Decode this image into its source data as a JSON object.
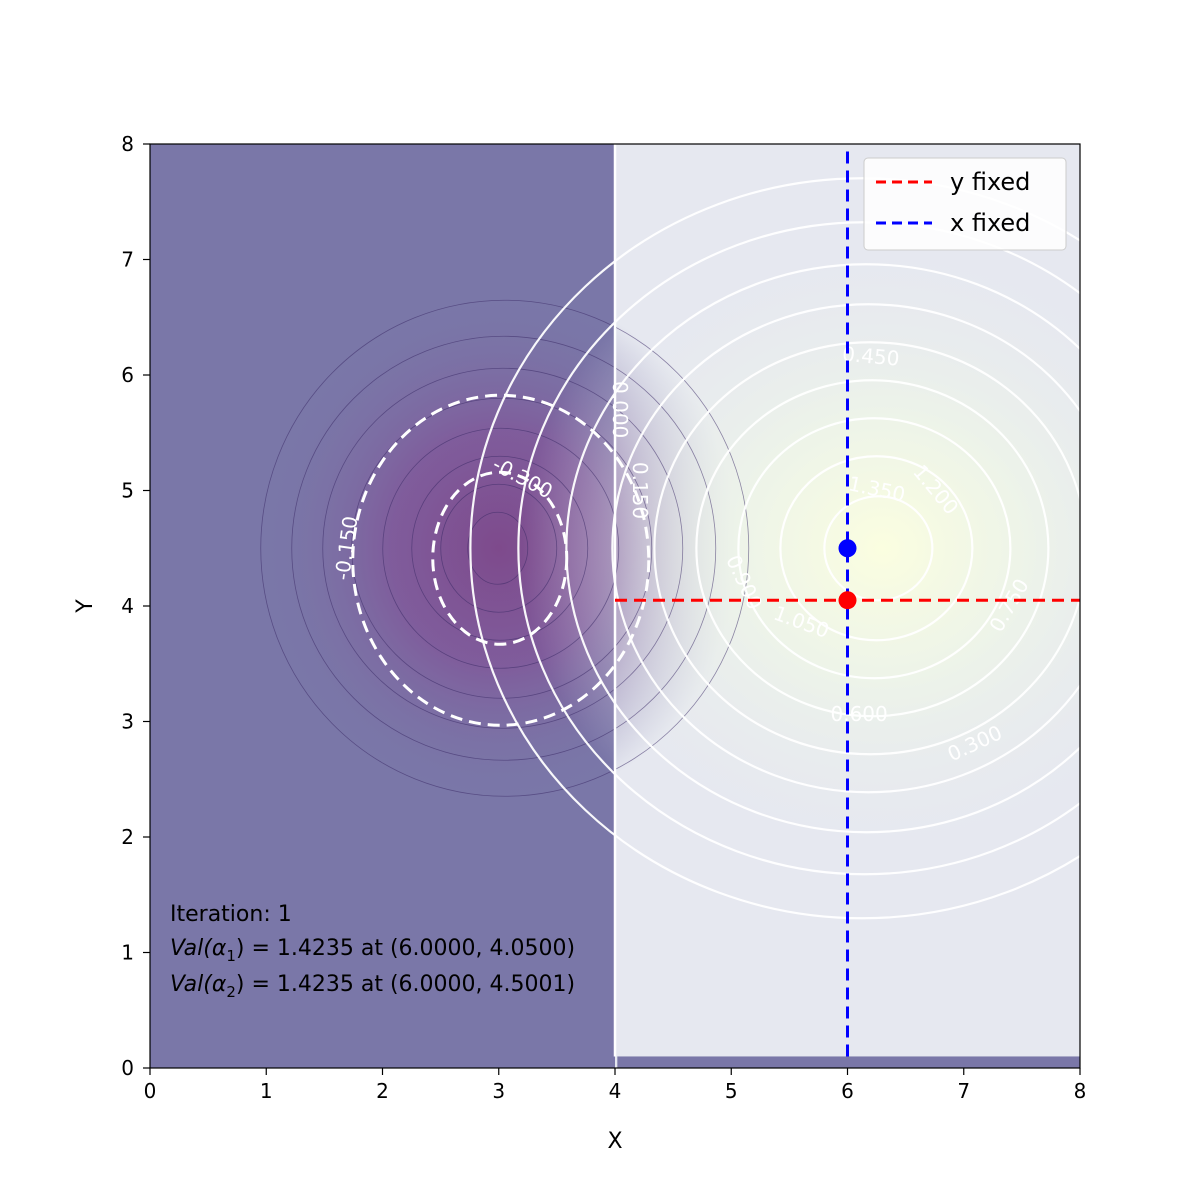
{
  "chart_data": {
    "type": "contour",
    "xlabel": "X",
    "ylabel": "Y",
    "xlim": [
      0,
      8
    ],
    "ylim": [
      0,
      8
    ],
    "x_ticks": [
      "0",
      "1",
      "2",
      "3",
      "4",
      "5",
      "6",
      "7",
      "8"
    ],
    "y_ticks": [
      "0",
      "1",
      "2",
      "3",
      "4",
      "5",
      "6",
      "7",
      "8"
    ],
    "grid": false,
    "legend_placement": "top-right",
    "legend": [
      {
        "label": "y fixed",
        "color": "#ff0000",
        "style": "dashed"
      },
      {
        "label": "x fixed",
        "color": "#0000ff",
        "style": "dashed"
      }
    ],
    "regions": [
      {
        "name": "left",
        "x_range": [
          0,
          4
        ],
        "color": "#7a77a8"
      },
      {
        "name": "right",
        "x_range": [
          4,
          8
        ],
        "color": "#e6e8f0"
      }
    ],
    "wells": [
      {
        "center": [
          3.0,
          4.5
        ],
        "sign": "negative",
        "color": "#7e4a8c"
      },
      {
        "center": [
          6.3,
          4.5
        ],
        "sign": "positive",
        "color": "#f8fde2"
      }
    ],
    "contour_labels": [
      {
        "text": "-0.150",
        "x": 1.7,
        "y": 4.5,
        "angle": -82
      },
      {
        "text": "-0.300",
        "x": 3.2,
        "y": 5.1,
        "angle": 28
      },
      {
        "text": "0.000",
        "x": 4.03,
        "y": 5.7,
        "angle": 90
      },
      {
        "text": "0.150",
        "x": 4.2,
        "y": 5.0,
        "angle": 90
      },
      {
        "text": "0.450",
        "x": 6.2,
        "y": 6.15,
        "angle": 5
      },
      {
        "text": "1.350",
        "x": 6.25,
        "y": 5.0,
        "angle": 12
      },
      {
        "text": "1.200",
        "x": 6.75,
        "y": 5.0,
        "angle": 50
      },
      {
        "text": "0.900",
        "x": 5.1,
        "y": 4.2,
        "angle": 65
      },
      {
        "text": "1.050",
        "x": 5.6,
        "y": 3.85,
        "angle": 20
      },
      {
        "text": "0.750",
        "x": 7.4,
        "y": 4.0,
        "angle": -60
      },
      {
        "text": "0.600",
        "x": 6.1,
        "y": 3.05,
        "angle": 0
      },
      {
        "text": "0.300",
        "x": 7.1,
        "y": 2.8,
        "angle": -25
      }
    ],
    "dashed_contour_levels": [
      -0.3,
      -0.15
    ],
    "lines": [
      {
        "name": "y fixed",
        "orientation": "horizontal",
        "y": 4.05,
        "x_range": [
          4,
          8
        ],
        "color": "#ff0000"
      },
      {
        "name": "x fixed",
        "orientation": "vertical",
        "x": 6.0,
        "y_range": [
          0.1,
          8
        ],
        "color": "#0000ff"
      }
    ],
    "points": [
      {
        "name": "alpha1",
        "x": 6.0,
        "y": 4.05,
        "color": "#ff0000"
      },
      {
        "name": "alpha2",
        "x": 6.0,
        "y": 4.5,
        "color": "#0000ff"
      }
    ],
    "annotation": {
      "line1": "Iteration: 1",
      "line2_prefix": "Val(",
      "line2_sub": "1",
      "line2_suffix": ") = 1.4235 at (6.0000, 4.0500)",
      "line3_prefix": "Val(",
      "line3_sub": "2",
      "line3_suffix": ") = 1.4235 at (6.0000, 4.5001)",
      "alpha_symbol": "α"
    }
  }
}
